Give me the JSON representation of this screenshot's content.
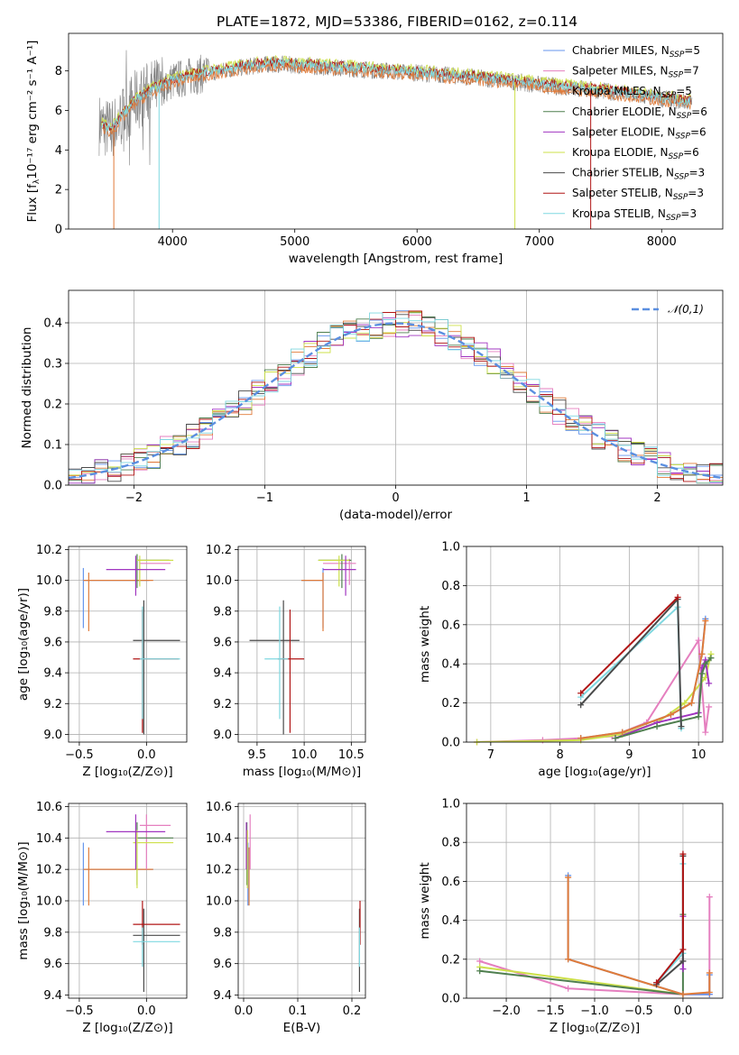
{
  "title": "PLATE=1872, MJD=53386, FIBERID=0162, z=0.114",
  "colors": {
    "Chabrier MILES": "#6495ed",
    "Salpeter MILES": "#e57fbf",
    "Kroupa MILES": "#e07b39",
    "Chabrier ELODIE": "#4f7f4f",
    "Salpeter ELODIE": "#a035c0",
    "Kroupa ELODIE": "#cde04a",
    "Chabrier STELIB": "#4a4a4a",
    "Salpeter STELIB": "#b01515",
    "Kroupa STELIB": "#7fd8e0",
    "normal": "#5b8fe0",
    "data": "#808080"
  },
  "chart_data": [
    {
      "id": "spectrum",
      "type": "line",
      "xlabel": "wavelength [Angstrom, rest frame]",
      "ylabel_main": "Flux [f",
      "ylabel_sub": "λ",
      "ylabel_rest": "10⁻¹⁷ erg cm⁻² s⁻¹ A⁻¹]",
      "xlim": [
        3150,
        8500
      ],
      "ylim": [
        0,
        9.9
      ],
      "xticks": [
        4000,
        5000,
        6000,
        7000,
        8000
      ],
      "yticks": [
        0,
        2,
        4,
        6,
        8
      ],
      "legend_position": "right",
      "legend": [
        {
          "name": "Chabrier MILES",
          "nssp": "5"
        },
        {
          "name": "Salpeter MILES",
          "nssp": "7"
        },
        {
          "name": "Kroupa MILES",
          "nssp": "5"
        },
        {
          "name": "Chabrier ELODIE",
          "nssp": "6"
        },
        {
          "name": "Salpeter ELODIE",
          "nssp": "6"
        },
        {
          "name": "Kroupa ELODIE",
          "nssp": "6"
        },
        {
          "name": "Chabrier STELIB",
          "nssp": "3"
        },
        {
          "name": "Salpeter STELIB",
          "nssp": "3"
        },
        {
          "name": "Kroupa STELIB",
          "nssp": "3"
        }
      ],
      "nssp_prefix": "N",
      "nssp_sub": "SSP",
      "continuum": {
        "x": [
          3400,
          3500,
          3600,
          3700,
          3800,
          3900,
          4000,
          4200,
          4400,
          4600,
          4800,
          5000,
          5500,
          6000,
          6500,
          7000,
          7500,
          8000,
          8250
        ],
        "y": [
          5.3,
          5.0,
          5.8,
          6.5,
          6.9,
          7.2,
          7.5,
          7.8,
          8.0,
          8.2,
          8.35,
          8.3,
          8.1,
          7.9,
          7.65,
          7.3,
          7.0,
          6.6,
          6.4
        ]
      }
    },
    {
      "id": "residuals",
      "type": "line",
      "xlabel": "(data-model)/error",
      "ylabel": "Normed distribution",
      "xlim": [
        -2.5,
        2.5
      ],
      "ylim": [
        0,
        0.48
      ],
      "xticks": [
        -2,
        -1,
        0,
        1,
        2
      ],
      "xticklabels": [
        "−2",
        "−1",
        "0",
        "1",
        "2"
      ],
      "yticks": [
        0.0,
        0.1,
        0.2,
        0.3,
        0.4
      ],
      "yticklabels": [
        "0.0",
        "0.1",
        "0.2",
        "0.3",
        "0.4"
      ],
      "legend": "𝒩(0,1)",
      "legend_position": "top-right",
      "bin_width": 0.1
    },
    {
      "id": "age_vs_Z",
      "type": "scatter",
      "xlabel": "Z [log₁₀(Z/Z⊙)]",
      "ylabel": "age  [log₁₀(age/yr)]",
      "xlim": [
        -0.58,
        0.3
      ],
      "ylim": [
        8.95,
        10.22
      ],
      "xticks": [
        -0.5,
        0.0
      ],
      "xticklabels": [
        "−0.5",
        "0.0"
      ],
      "yticks": [
        9.0,
        9.2,
        9.4,
        9.6,
        9.8,
        10.0,
        10.2
      ],
      "yticklabels": [
        "9.0",
        "9.2",
        "9.4",
        "9.6",
        "9.8",
        "10.0",
        "10.2"
      ],
      "points": [
        {
          "m": "Chabrier MILES",
          "x": -0.47,
          "xl": -0.47,
          "xh": 0.02,
          "y": 10.0,
          "yl": 9.69,
          "yh": 10.08
        },
        {
          "m": "Kroupa MILES",
          "x": -0.43,
          "xl": -0.47,
          "xh": 0.05,
          "y": 10.0,
          "yl": 9.67,
          "yh": 10.05
        },
        {
          "m": "Salpeter MILES",
          "x": -0.05,
          "xl": -0.05,
          "xh": 0.18,
          "y": 10.11,
          "yl": 9.97,
          "yh": 10.14
        },
        {
          "m": "Chabrier ELODIE",
          "x": -0.07,
          "xl": -0.07,
          "xh": 0.17,
          "y": 10.13,
          "yl": 9.95,
          "yh": 10.17
        },
        {
          "m": "Kroupa ELODIE",
          "x": -0.05,
          "xl": -0.07,
          "xh": 0.2,
          "y": 10.13,
          "yl": 9.96,
          "yh": 10.16
        },
        {
          "m": "Salpeter ELODIE",
          "x": -0.08,
          "xl": -0.3,
          "xh": 0.14,
          "y": 10.07,
          "yl": 9.9,
          "yh": 10.16
        },
        {
          "m": "Chabrier STELIB",
          "x": -0.02,
          "xl": -0.1,
          "xh": 0.25,
          "y": 9.61,
          "yl": 9.0,
          "yh": 9.87
        },
        {
          "m": "Salpeter STELIB",
          "x": -0.03,
          "xl": -0.1,
          "xh": 0.24,
          "y": 9.49,
          "yl": 9.01,
          "yh": 9.81
        },
        {
          "m": "Kroupa STELIB",
          "x": -0.03,
          "xl": -0.05,
          "xh": 0.25,
          "y": 9.49,
          "yl": 9.1,
          "yh": 9.83
        }
      ]
    },
    {
      "id": "age_vs_mass",
      "type": "scatter",
      "xlabel": "mass [log₁₀(M/M⊙)]",
      "xlim": [
        9.3,
        10.65
      ],
      "ylim": [
        8.95,
        10.22
      ],
      "xticks": [
        9.5,
        10.0,
        10.5
      ],
      "xticklabels": [
        "9.5",
        "10.0",
        "10.5"
      ],
      "yticks": [
        9.0,
        9.2,
        9.4,
        9.6,
        9.8,
        10.0,
        10.2
      ],
      "yticklabels": [
        "9.0",
        "9.2",
        "9.4",
        "9.6",
        "9.8",
        "10.0",
        "10.2"
      ],
      "points": [
        {
          "m": "Chabrier MILES",
          "x": 10.2,
          "xl": 9.97,
          "xh": 10.2,
          "y": 10.0,
          "yl": 9.69,
          "yh": 10.08
        },
        {
          "m": "Kroupa MILES",
          "x": 10.2,
          "xl": 9.97,
          "xh": 10.2,
          "y": 10.0,
          "yl": 9.67,
          "yh": 10.05
        },
        {
          "m": "Salpeter MILES",
          "x": 10.48,
          "xl": 10.2,
          "xh": 10.55,
          "y": 10.11,
          "yl": 9.97,
          "yh": 10.14
        },
        {
          "m": "Chabrier ELODIE",
          "x": 10.4,
          "xl": 10.15,
          "xh": 10.5,
          "y": 10.13,
          "yl": 9.95,
          "yh": 10.17
        },
        {
          "m": "Kroupa ELODIE",
          "x": 10.37,
          "xl": 10.15,
          "xh": 10.48,
          "y": 10.13,
          "yl": 9.96,
          "yh": 10.16
        },
        {
          "m": "Salpeter ELODIE",
          "x": 10.44,
          "xl": 10.2,
          "xh": 10.55,
          "y": 10.07,
          "yl": 9.9,
          "yh": 10.16
        },
        {
          "m": "Chabrier STELIB",
          "x": 9.78,
          "xl": 9.42,
          "xh": 9.95,
          "y": 9.61,
          "yl": 9.0,
          "yh": 9.87
        },
        {
          "m": "Salpeter STELIB",
          "x": 9.85,
          "xl": 9.72,
          "xh": 10.0,
          "y": 9.49,
          "yl": 9.01,
          "yh": 9.81
        },
        {
          "m": "Kroupa STELIB",
          "x": 9.74,
          "xl": 9.58,
          "xh": 9.83,
          "y": 9.49,
          "yl": 9.1,
          "yh": 9.83
        }
      ]
    },
    {
      "id": "massweight_vs_age",
      "type": "line",
      "xlabel": "age  [log₁₀(age/yr)]",
      "ylabel": "mass weight",
      "xlim": [
        6.65,
        10.35
      ],
      "ylim": [
        0,
        1.0
      ],
      "xticks": [
        7,
        8,
        9,
        10
      ],
      "yticks": [
        0.0,
        0.2,
        0.4,
        0.6,
        0.8,
        1.0
      ],
      "yticklabels": [
        "0.0",
        "0.2",
        "0.4",
        "0.6",
        "0.8",
        "1.0"
      ],
      "series": [
        {
          "m": "Salpeter MILES",
          "x": [
            6.8,
            7.75,
            8.3,
            8.75,
            9.25,
            10.0,
            10.1,
            10.15
          ],
          "y": [
            0.0,
            0.01,
            0.02,
            0.03,
            0.1,
            0.52,
            0.05,
            0.18
          ]
        },
        {
          "m": "Kroupa ELODIE",
          "x": [
            6.8,
            8.3,
            8.9,
            9.4,
            9.8,
            10.1,
            10.18
          ],
          "y": [
            0.0,
            0.01,
            0.04,
            0.1,
            0.2,
            0.33,
            0.45
          ]
        },
        {
          "m": "Salpeter ELODIE",
          "x": [
            8.8,
            9.4,
            10.0,
            10.05,
            10.1,
            10.15
          ],
          "y": [
            0.02,
            0.1,
            0.15,
            0.38,
            0.42,
            0.3
          ]
        },
        {
          "m": "Chabrier ELODIE",
          "x": [
            8.8,
            9.4,
            10.0,
            10.05,
            10.1,
            10.18
          ],
          "y": [
            0.02,
            0.08,
            0.13,
            0.35,
            0.4,
            0.43
          ]
        },
        {
          "m": "Chabrier MILES",
          "x": [
            8.3,
            8.9,
            9.6,
            9.9,
            10.05,
            10.1
          ],
          "y": [
            0.02,
            0.05,
            0.14,
            0.2,
            0.45,
            0.63
          ]
        },
        {
          "m": "Kroupa MILES",
          "x": [
            8.3,
            8.9,
            9.6,
            9.9,
            10.05,
            10.1
          ],
          "y": [
            0.02,
            0.05,
            0.14,
            0.2,
            0.45,
            0.62
          ]
        },
        {
          "m": "Kroupa STELIB",
          "x": [
            8.3,
            9.7,
            9.75
          ],
          "y": [
            0.23,
            0.69,
            0.07
          ]
        },
        {
          "m": "Chabrier STELIB",
          "x": [
            8.3,
            9.7,
            9.75
          ],
          "y": [
            0.19,
            0.73,
            0.08
          ]
        },
        {
          "m": "Salpeter STELIB",
          "x": [
            8.3,
            9.7
          ],
          "y": [
            0.25,
            0.74
          ]
        }
      ]
    },
    {
      "id": "mass_vs_Z",
      "type": "scatter",
      "xlabel": "Z [log₁₀(Z/Z⊙)]",
      "ylabel": "mass [log₁₀(M/M⊙)]",
      "xlim": [
        -0.58,
        0.3
      ],
      "ylim": [
        9.38,
        10.62
      ],
      "xticks": [
        -0.5,
        0.0
      ],
      "xticklabels": [
        "−0.5",
        "0.0"
      ],
      "yticks": [
        9.4,
        9.6,
        9.8,
        10.0,
        10.2,
        10.4,
        10.6
      ],
      "yticklabels": [
        "9.4",
        "9.6",
        "9.8",
        "10.0",
        "10.2",
        "10.4",
        "10.6"
      ],
      "points": [
        {
          "m": "Chabrier MILES",
          "x": -0.47,
          "xl": -0.47,
          "xh": 0.05,
          "y": 10.2,
          "yl": 9.97,
          "yh": 10.37
        },
        {
          "m": "Kroupa MILES",
          "x": -0.43,
          "xl": -0.47,
          "xh": 0.05,
          "y": 10.2,
          "yl": 9.97,
          "yh": 10.34
        },
        {
          "m": "Salpeter MILES",
          "x": 0.0,
          "xl": -0.05,
          "xh": 0.18,
          "y": 10.48,
          "yl": 10.2,
          "yh": 10.55
        },
        {
          "m": "Chabrier ELODIE",
          "x": -0.07,
          "xl": -0.07,
          "xh": 0.2,
          "y": 10.4,
          "yl": 10.1,
          "yh": 10.5
        },
        {
          "m": "Kroupa ELODIE",
          "x": -0.07,
          "xl": -0.1,
          "xh": 0.2,
          "y": 10.37,
          "yl": 10.08,
          "yh": 10.45
        },
        {
          "m": "Salpeter ELODIE",
          "x": -0.08,
          "xl": -0.3,
          "xh": 0.14,
          "y": 10.44,
          "yl": 10.2,
          "yh": 10.55
        },
        {
          "m": "Chabrier STELIB",
          "x": -0.02,
          "xl": -0.1,
          "xh": 0.25,
          "y": 9.78,
          "yl": 9.42,
          "yh": 9.95
        },
        {
          "m": "Salpeter STELIB",
          "x": -0.03,
          "xl": -0.1,
          "xh": 0.25,
          "y": 9.85,
          "yl": 9.72,
          "yh": 10.0
        },
        {
          "m": "Kroupa STELIB",
          "x": -0.03,
          "xl": -0.1,
          "xh": 0.25,
          "y": 9.74,
          "yl": 9.58,
          "yh": 9.83
        }
      ]
    },
    {
      "id": "mass_vs_EBV",
      "type": "scatter",
      "xlabel": "E(B-V)",
      "xlim": [
        -0.01,
        0.225
      ],
      "ylim": [
        9.38,
        10.62
      ],
      "xticks": [
        0.0,
        0.1,
        0.2
      ],
      "xticklabels": [
        "0.0",
        "0.1",
        "0.2"
      ],
      "yticks": [
        9.4,
        9.6,
        9.8,
        10.0,
        10.2,
        10.4,
        10.6
      ],
      "yticklabels": [
        "9.4",
        "9.6",
        "9.8",
        "10.0",
        "10.2",
        "10.4",
        "10.6"
      ],
      "points": [
        {
          "m": "Chabrier MILES",
          "x": 0.008,
          "y": 10.2,
          "yl": 9.97,
          "yh": 10.37
        },
        {
          "m": "Kroupa MILES",
          "x": 0.01,
          "y": 10.2,
          "yl": 9.97,
          "yh": 10.34
        },
        {
          "m": "Salpeter MILES",
          "x": 0.012,
          "y": 10.48,
          "yl": 10.2,
          "yh": 10.55
        },
        {
          "m": "Chabrier ELODIE",
          "x": 0.006,
          "y": 10.4,
          "yl": 10.1,
          "yh": 10.5
        },
        {
          "m": "Kroupa ELODIE",
          "x": 0.007,
          "y": 10.37,
          "yl": 10.08,
          "yh": 10.45
        },
        {
          "m": "Salpeter ELODIE",
          "x": 0.005,
          "y": 10.44,
          "yl": 10.2,
          "yh": 10.5
        },
        {
          "m": "Chabrier STELIB",
          "x": 0.214,
          "y": 9.78,
          "yl": 9.42,
          "yh": 9.95
        },
        {
          "m": "Salpeter STELIB",
          "x": 0.215,
          "y": 9.85,
          "yl": 9.72,
          "yh": 10.0
        },
        {
          "m": "Kroupa STELIB",
          "x": 0.214,
          "y": 9.74,
          "yl": 9.58,
          "yh": 9.83
        }
      ]
    },
    {
      "id": "massweight_vs_Z",
      "type": "line",
      "xlabel": "Z [log₁₀(Z/Z⊙)]",
      "ylabel": "mass weight",
      "xlim": [
        -2.45,
        0.45
      ],
      "ylim": [
        0,
        1.0
      ],
      "xticks": [
        -2.0,
        -1.5,
        -1.0,
        -0.5,
        0.0
      ],
      "xticklabels": [
        "−2.0",
        "−1.5",
        "−1.0",
        "−0.5",
        "0.0"
      ],
      "yticks": [
        0.0,
        0.2,
        0.4,
        0.6,
        0.8,
        1.0
      ],
      "yticklabels": [
        "0.0",
        "0.2",
        "0.4",
        "0.6",
        "0.8",
        "1.0"
      ],
      "series": [
        {
          "m": "Salpeter MILES",
          "x": [
            -2.3,
            -1.3,
            0.0,
            0.3,
            0.3
          ],
          "y": [
            0.19,
            0.05,
            0.02,
            0.02,
            0.52
          ]
        },
        {
          "m": "Kroupa ELODIE",
          "x": [
            -2.3,
            0.0
          ],
          "y": [
            0.16,
            0.02
          ]
        },
        {
          "m": "Chabrier ELODIE",
          "x": [
            -2.3,
            0.0,
            0.0
          ],
          "y": [
            0.14,
            0.02,
            0.43
          ]
        },
        {
          "m": "Salpeter ELODIE",
          "x": [
            0.0,
            0.0
          ],
          "y": [
            0.15,
            0.42
          ]
        },
        {
          "m": "Chabrier MILES",
          "x": [
            -1.3,
            -1.3,
            0.0,
            0.3,
            0.3
          ],
          "y": [
            0.63,
            0.2,
            0.02,
            0.02,
            0.12
          ]
        },
        {
          "m": "Kroupa MILES",
          "x": [
            -1.3,
            -1.3,
            0.0,
            0.3,
            0.3
          ],
          "y": [
            0.62,
            0.2,
            0.02,
            0.03,
            0.13
          ]
        },
        {
          "m": "Kroupa STELIB",
          "x": [
            -0.3,
            0.0,
            0.0
          ],
          "y": [
            0.08,
            0.23,
            0.69
          ]
        },
        {
          "m": "Chabrier STELIB",
          "x": [
            -0.3,
            0.0,
            0.0
          ],
          "y": [
            0.07,
            0.19,
            0.73
          ]
        },
        {
          "m": "Salpeter STELIB",
          "x": [
            -0.3,
            0.0,
            0.0
          ],
          "y": [
            0.08,
            0.25,
            0.74
          ]
        }
      ]
    }
  ]
}
